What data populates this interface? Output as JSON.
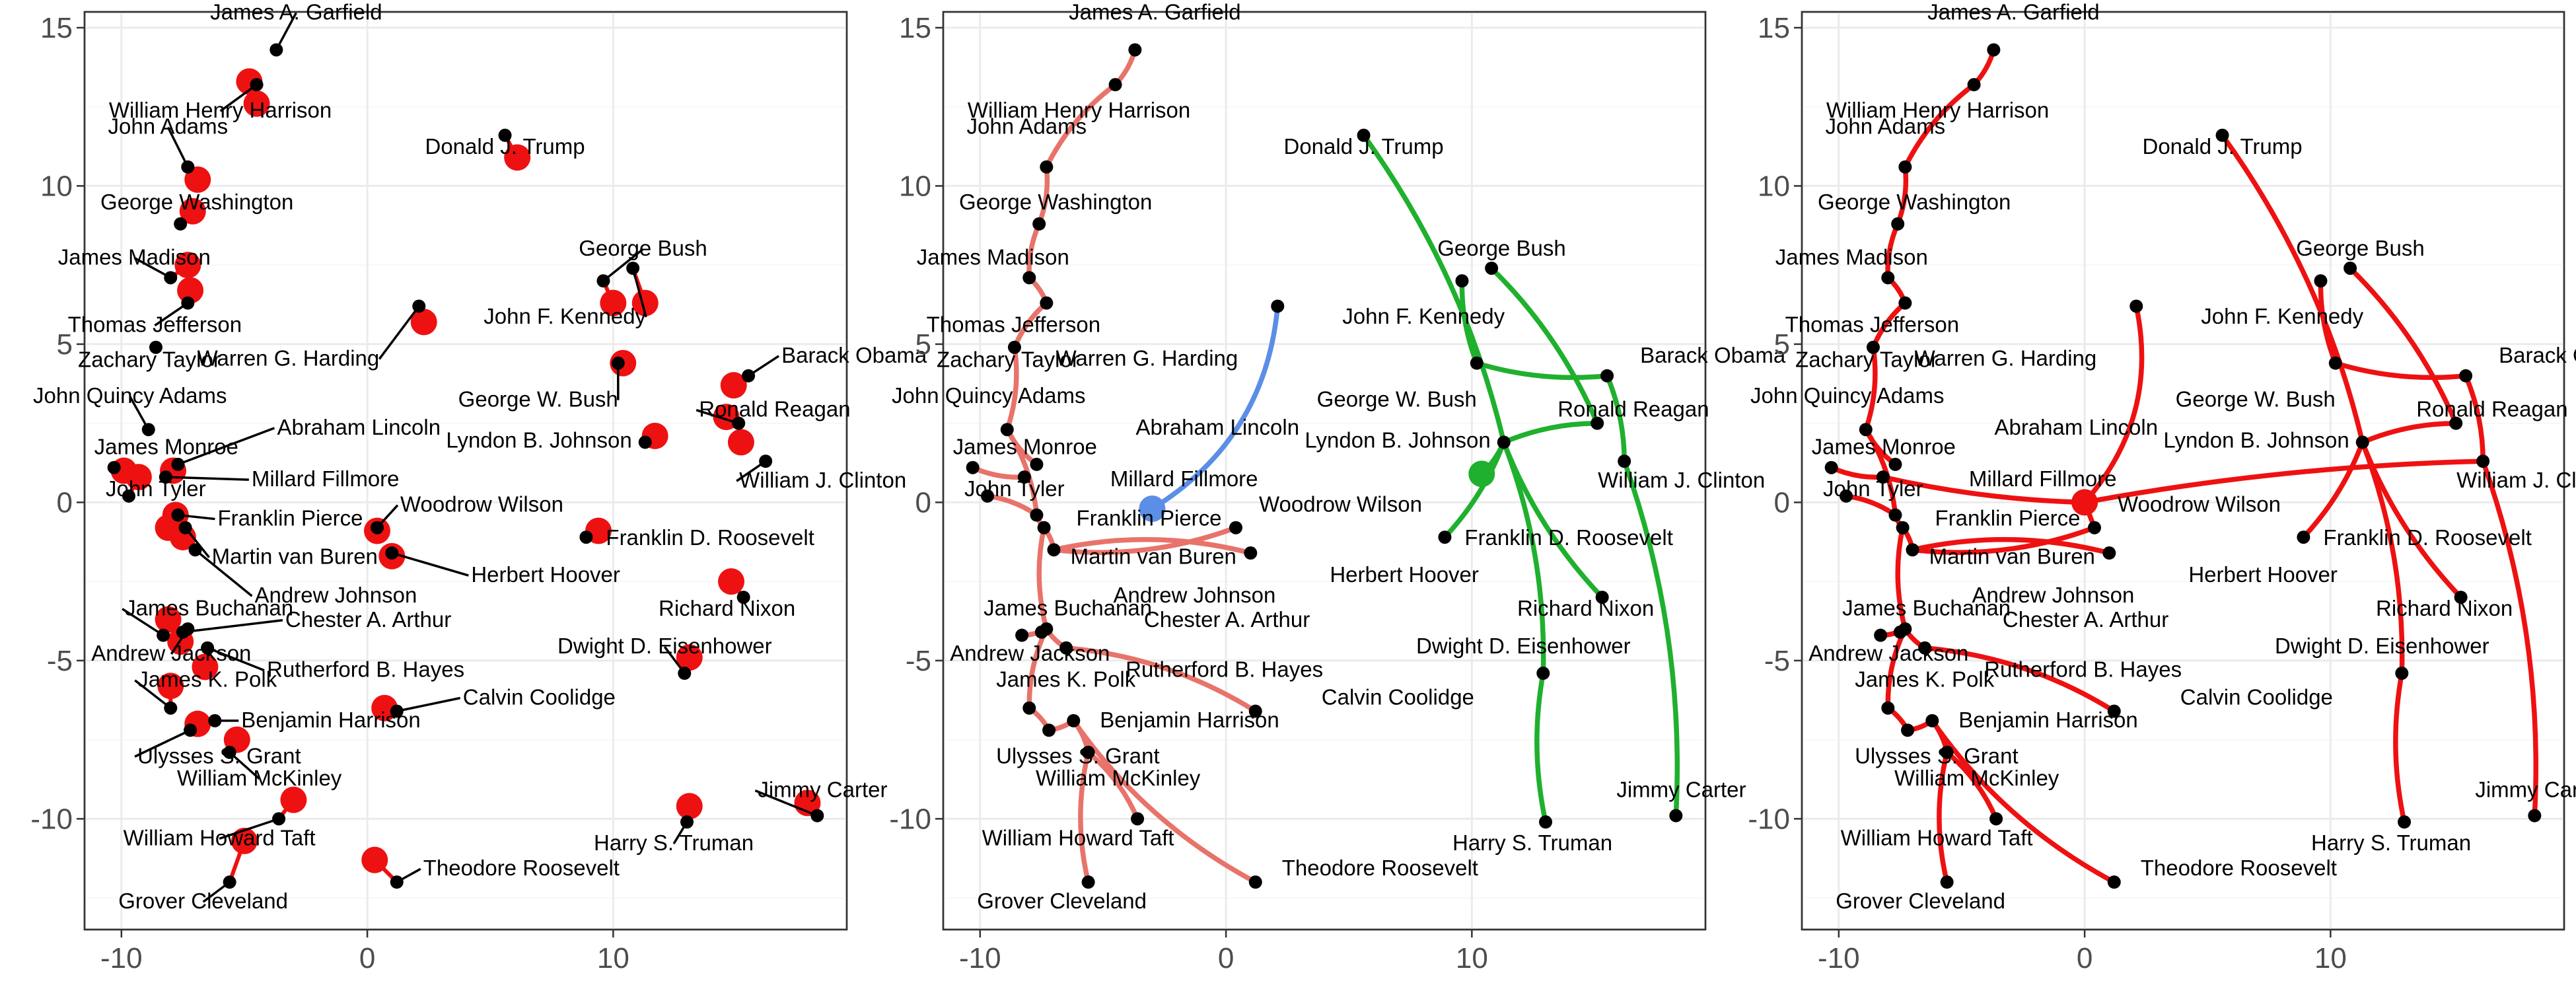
{
  "chart_data": [
    {
      "type": "scatter",
      "title": "",
      "xlabel": "",
      "ylabel": "",
      "xlim": [
        -11.5,
        19.5
      ],
      "ylim": [
        -13.5,
        15.5
      ],
      "x_ticks": [
        -10,
        0,
        10
      ],
      "y_ticks": [
        -10,
        -5,
        0,
        5,
        10,
        15
      ],
      "grid": true,
      "points": [
        {
          "name": "James A. Garfield",
          "x": -3.7,
          "y": 14.3
        },
        {
          "name": "William Henry Harrison",
          "x": -4.5,
          "y": 13.2
        },
        {
          "name": "John Adams",
          "x": -7.3,
          "y": 10.6
        },
        {
          "name": "George Washington",
          "x": -7.6,
          "y": 8.8
        },
        {
          "name": "James Madison",
          "x": -8.0,
          "y": 7.1
        },
        {
          "name": "Thomas Jefferson",
          "x": -7.3,
          "y": 6.3
        },
        {
          "name": "Zachary Taylor",
          "x": -8.6,
          "y": 4.9
        },
        {
          "name": "John Quincy Adams",
          "x": -8.9,
          "y": 2.3
        },
        {
          "name": "James Monroe",
          "x": -10.3,
          "y": 1.1
        },
        {
          "name": "Abraham Lincoln",
          "x": -7.7,
          "y": 1.2
        },
        {
          "name": "John Tyler",
          "x": -9.7,
          "y": 0.2
        },
        {
          "name": "Millard Fillmore",
          "x": -8.2,
          "y": 0.8
        },
        {
          "name": "Franklin Pierce",
          "x": -7.7,
          "y": -0.4
        },
        {
          "name": "Martin van Buren",
          "x": -7.4,
          "y": -0.8
        },
        {
          "name": "Andrew Johnson",
          "x": -7.0,
          "y": -1.5
        },
        {
          "name": "James Buchanan",
          "x": -8.3,
          "y": -4.2
        },
        {
          "name": "Andrew Jackson",
          "x": -7.3,
          "y": -4.0
        },
        {
          "name": "Chester A. Arthur",
          "x": -7.5,
          "y": -4.1
        },
        {
          "name": "Rutherford B. Hayes",
          "x": -6.5,
          "y": -4.6
        },
        {
          "name": "James K. Polk",
          "x": -8.0,
          "y": -6.5
        },
        {
          "name": "Benjamin Harrison",
          "x": -6.2,
          "y": -6.9
        },
        {
          "name": "Ulysses S. Grant",
          "x": -7.2,
          "y": -7.2
        },
        {
          "name": "William McKinley",
          "x": -5.6,
          "y": -7.9
        },
        {
          "name": "William Howard Taft",
          "x": -3.6,
          "y": -10.0
        },
        {
          "name": "Grover Cleveland",
          "x": -5.6,
          "y": -12.0
        },
        {
          "name": "Theodore Roosevelt",
          "x": 1.2,
          "y": -12.0
        },
        {
          "name": "Calvin Coolidge",
          "x": 1.2,
          "y": -6.6
        },
        {
          "name": "Herbert Hoover",
          "x": 1.0,
          "y": -1.6
        },
        {
          "name": "Woodrow Wilson",
          "x": 0.4,
          "y": -0.8
        },
        {
          "name": "Warren G. Harding",
          "x": 2.1,
          "y": 6.2
        },
        {
          "name": "Donald J. Trump",
          "x": 5.6,
          "y": 11.6
        },
        {
          "name": "George Bush",
          "x": 9.6,
          "y": 7.0
        },
        {
          "name": "John F. Kennedy",
          "x": 10.8,
          "y": 7.4
        },
        {
          "name": "George W. Bush",
          "x": 10.2,
          "y": 4.4
        },
        {
          "name": "Barack Obama",
          "x": 15.5,
          "y": 4.0
        },
        {
          "name": "Ronald Reagan",
          "x": 15.1,
          "y": 2.5
        },
        {
          "name": "Lyndon B. Johnson",
          "x": 11.3,
          "y": 1.9
        },
        {
          "name": "William J. Clinton",
          "x": 16.2,
          "y": 1.3
        },
        {
          "name": "Franklin D. Roosevelt",
          "x": 8.9,
          "y": -1.1
        },
        {
          "name": "Richard Nixon",
          "x": 15.3,
          "y": -3.0
        },
        {
          "name": "Dwight D. Eisenhower",
          "x": 12.9,
          "y": -5.4
        },
        {
          "name": "Harry S. Truman",
          "x": 13.0,
          "y": -10.1
        },
        {
          "name": "Jimmy Carter",
          "x": 18.3,
          "y": -9.9
        }
      ],
      "centers": [
        {
          "x": -4.5,
          "y": 12.6
        },
        {
          "x": -4.8,
          "y": 13.3
        },
        {
          "x": -6.9,
          "y": 10.2
        },
        {
          "x": -7.1,
          "y": 9.2
        },
        {
          "x": -7.3,
          "y": 7.5
        },
        {
          "x": -7.2,
          "y": 6.7
        },
        {
          "x": -9.9,
          "y": 1.0
        },
        {
          "x": -9.3,
          "y": 0.8
        },
        {
          "x": -7.9,
          "y": 1.0
        },
        {
          "x": -7.8,
          "y": -0.4
        },
        {
          "x": -8.1,
          "y": -0.8
        },
        {
          "x": -7.5,
          "y": -1.1
        },
        {
          "x": -8.1,
          "y": -3.7
        },
        {
          "x": -7.6,
          "y": -4.4
        },
        {
          "x": -6.6,
          "y": -5.2
        },
        {
          "x": -8.0,
          "y": -5.8
        },
        {
          "x": -6.9,
          "y": -7.0
        },
        {
          "x": -5.3,
          "y": -7.5
        },
        {
          "x": -5.0,
          "y": -10.7
        },
        {
          "x": -3.0,
          "y": -9.4
        },
        {
          "x": 0.3,
          "y": -11.3
        },
        {
          "x": 0.7,
          "y": -6.5
        },
        {
          "x": 1.0,
          "y": -1.7
        },
        {
          "x": 0.4,
          "y": -0.9
        },
        {
          "x": 2.3,
          "y": 5.7
        },
        {
          "x": 6.1,
          "y": 10.9
        },
        {
          "x": 10.0,
          "y": 6.3
        },
        {
          "x": 11.3,
          "y": 6.3
        },
        {
          "x": 10.4,
          "y": 4.4
        },
        {
          "x": 14.9,
          "y": 3.7
        },
        {
          "x": 14.6,
          "y": 2.7
        },
        {
          "x": 11.7,
          "y": 2.1
        },
        {
          "x": 15.2,
          "y": 1.9
        },
        {
          "x": 9.4,
          "y": -0.9
        },
        {
          "x": 14.8,
          "y": -2.5
        },
        {
          "x": 13.1,
          "y": -4.9
        },
        {
          "x": 13.1,
          "y": -9.6
        },
        {
          "x": 17.9,
          "y": -9.5
        }
      ]
    },
    {
      "type": "line",
      "title": "",
      "xlabel": "",
      "ylabel": "",
      "xlim": [
        -11.5,
        19.5
      ],
      "ylim": [
        -13.5,
        15.5
      ],
      "x_ticks": [
        -10,
        0,
        10
      ],
      "y_ticks": [
        -10,
        -5,
        0,
        5,
        10,
        15
      ],
      "grid": true,
      "series_colors": [
        "#e8736b",
        "#5b8ee6",
        "#1fb02e"
      ],
      "roots": [
        {
          "x": -3.0,
          "y": -0.2,
          "color": "#5b8ee6"
        },
        {
          "x": 10.4,
          "y": 0.9,
          "color": "#1fb02e"
        }
      ]
    },
    {
      "type": "line",
      "title": "",
      "xlabel": "",
      "ylabel": "",
      "xlim": [
        -11.5,
        19.5
      ],
      "ylim": [
        -13.5,
        15.5
      ],
      "x_ticks": [
        -10,
        0,
        10
      ],
      "y_ticks": [
        -10,
        -5,
        0,
        5,
        10,
        15
      ],
      "grid": true,
      "series_colors": [
        "#ee1111"
      ],
      "roots": [
        {
          "x": 0.0,
          "y": 0.0,
          "color": "#ee1111"
        }
      ]
    }
  ]
}
